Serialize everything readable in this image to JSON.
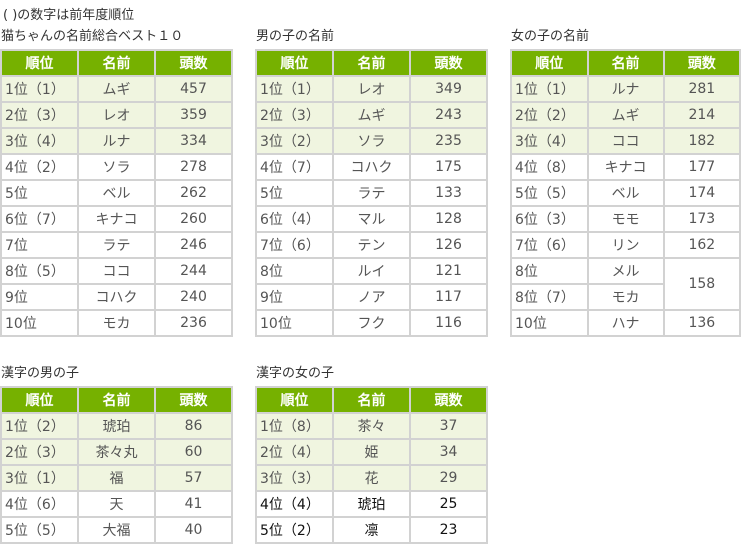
{
  "note": "( )の数字は前年度順位",
  "headers": {
    "rank": "順位",
    "name": "名前",
    "count": "頭数"
  },
  "tables": [
    {
      "title": "猫ちゃんの名前総合ベスト１０",
      "rows": [
        {
          "rank": "1位（1）",
          "name": "ムギ",
          "count": "457"
        },
        {
          "rank": "2位（3）",
          "name": "レオ",
          "count": "359"
        },
        {
          "rank": "3位（4）",
          "name": "ルナ",
          "count": "334"
        },
        {
          "rank": "4位（2）",
          "name": "ソラ",
          "count": "278"
        },
        {
          "rank": "5位",
          "name": "ベル",
          "count": "262"
        },
        {
          "rank": "6位（7）",
          "name": "キナコ",
          "count": "260"
        },
        {
          "rank": "7位",
          "name": "ラテ",
          "count": "246"
        },
        {
          "rank": "8位（5）",
          "name": "ココ",
          "count": "244"
        },
        {
          "rank": "9位",
          "name": "コハク",
          "count": "240"
        },
        {
          "rank": "10位",
          "name": "モカ",
          "count": "236"
        }
      ]
    },
    {
      "title": "男の子の名前",
      "rows": [
        {
          "rank": "1位（1）",
          "name": "レオ",
          "count": "349"
        },
        {
          "rank": "2位（3）",
          "name": "ムギ",
          "count": "243"
        },
        {
          "rank": "3位（2）",
          "name": "ソラ",
          "count": "235"
        },
        {
          "rank": "4位（7）",
          "name": "コハク",
          "count": "175"
        },
        {
          "rank": "5位",
          "name": "ラテ",
          "count": "133"
        },
        {
          "rank": "6位（4）",
          "name": "マル",
          "count": "128"
        },
        {
          "rank": "7位（6）",
          "name": "テン",
          "count": "126"
        },
        {
          "rank": "8位",
          "name": "ルイ",
          "count": "121"
        },
        {
          "rank": "9位",
          "name": "ノア",
          "count": "117"
        },
        {
          "rank": "10位",
          "name": "フク",
          "count": "116"
        }
      ]
    },
    {
      "title": "女の子の名前",
      "rows": [
        {
          "rank": "1位（1）",
          "name": "ルナ",
          "count": "281"
        },
        {
          "rank": "2位（2）",
          "name": "ムギ",
          "count": "214"
        },
        {
          "rank": "3位（4）",
          "name": "ココ",
          "count": "182"
        },
        {
          "rank": "4位（8）",
          "name": "キナコ",
          "count": "177"
        },
        {
          "rank": "5位（5）",
          "name": "ベル",
          "count": "174"
        },
        {
          "rank": "6位（3）",
          "name": "モモ",
          "count": "173"
        },
        {
          "rank": "7位（6）",
          "name": "リン",
          "count": "162"
        },
        {
          "rank": "8位",
          "name": "メル",
          "count": "158"
        },
        {
          "rank": "8位（7）",
          "name": "モカ",
          "count": ""
        },
        {
          "rank": "10位",
          "name": "ハナ",
          "count": "136"
        }
      ]
    },
    {
      "title": "漢字の男の子",
      "rows": [
        {
          "rank": "1位（2）",
          "name": "琥珀",
          "count": "86"
        },
        {
          "rank": "2位（3）",
          "name": "茶々丸",
          "count": "60"
        },
        {
          "rank": "3位（1）",
          "name": "福",
          "count": "57"
        },
        {
          "rank": "4位（6）",
          "name": "天",
          "count": "41"
        },
        {
          "rank": "5位（5）",
          "name": "大福",
          "count": "40"
        }
      ]
    },
    {
      "title": "漢字の女の子",
      "rows": [
        {
          "rank": "1位（8）",
          "name": "茶々",
          "count": "37"
        },
        {
          "rank": "2位（4）",
          "name": "姫",
          "count": "34"
        },
        {
          "rank": "3位（3）",
          "name": "花",
          "count": "29"
        },
        {
          "rank": "4位（4）",
          "name": "琥珀",
          "count": "25"
        },
        {
          "rank": "5位（2）",
          "name": "凛",
          "count": "23"
        }
      ]
    }
  ],
  "colors": {
    "header": "#76b100",
    "top3": "#f0f5e0",
    "border": "#d2d2d2"
  }
}
